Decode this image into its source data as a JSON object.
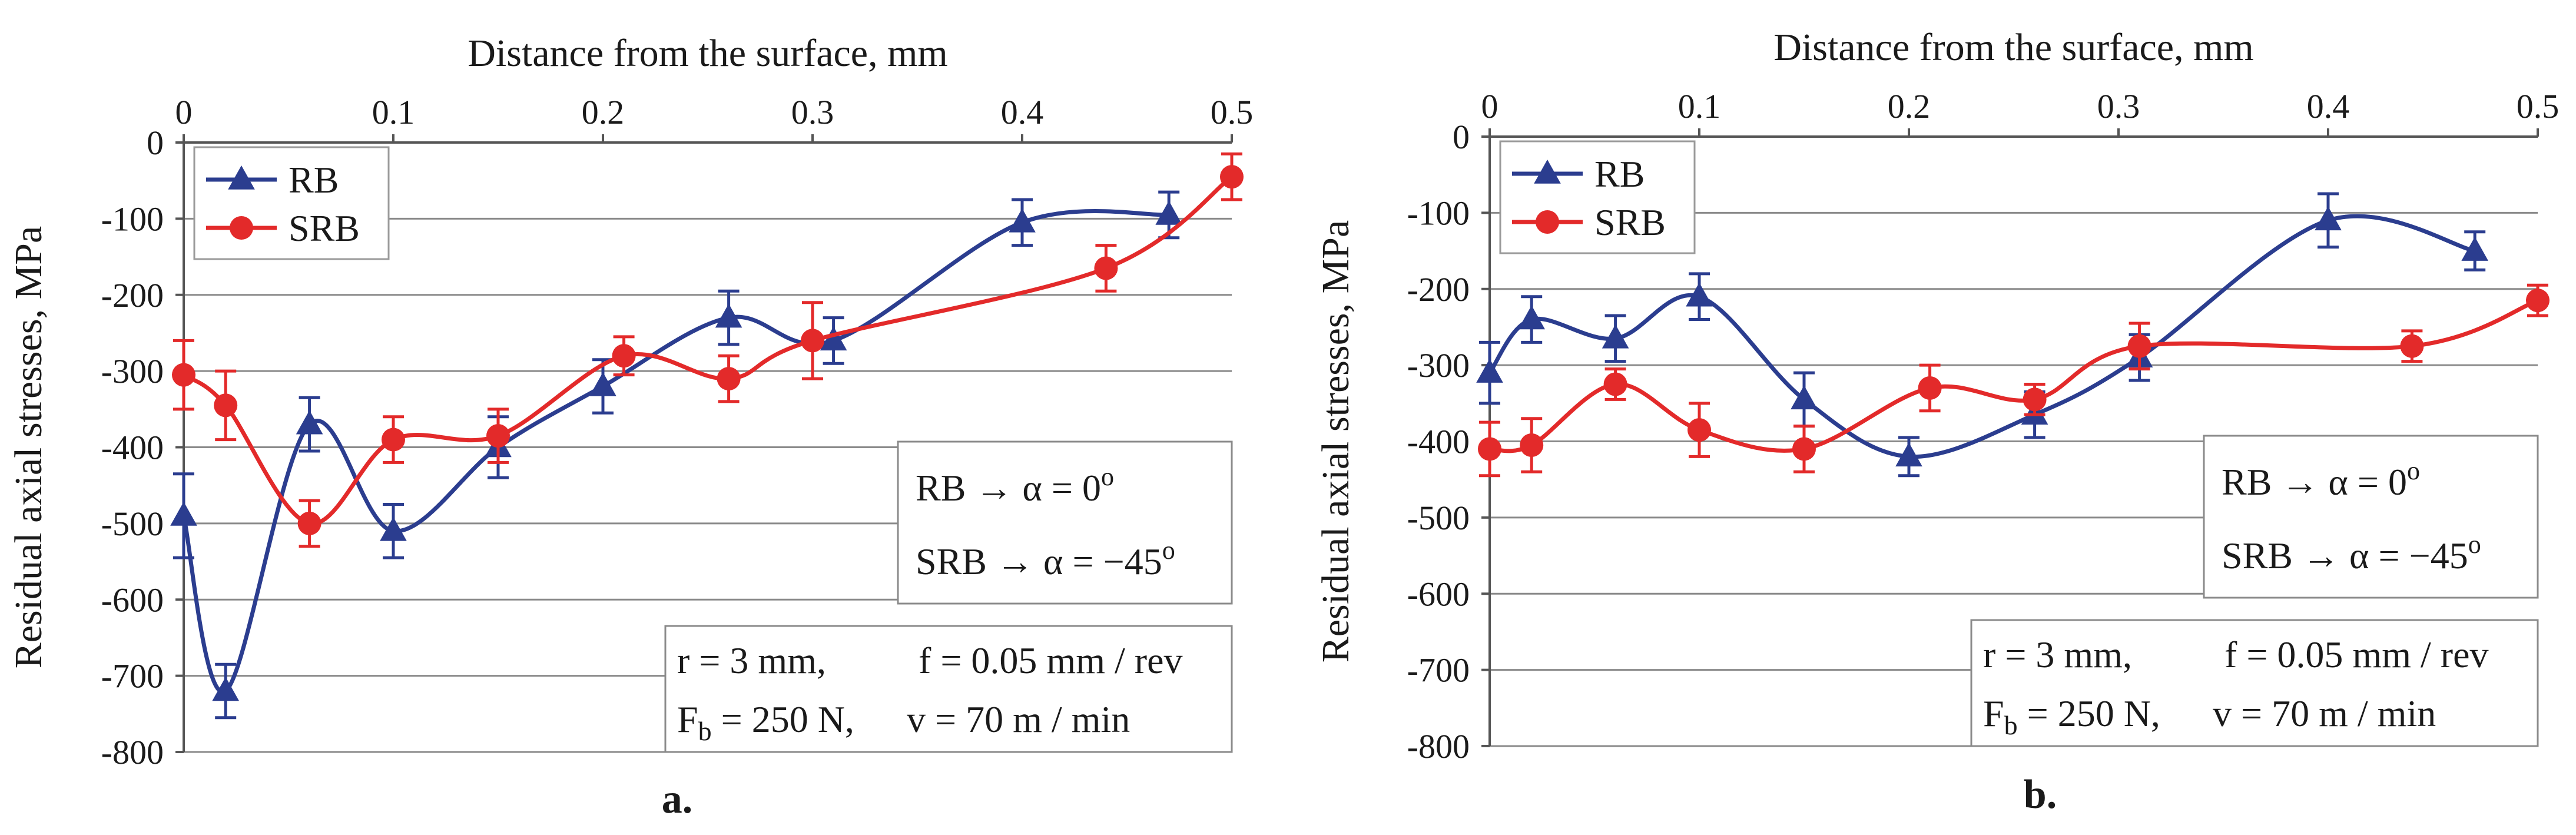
{
  "chart_data": [
    {
      "type": "line",
      "panel_label": "a.",
      "xlabel": "Distance from the surface, mm",
      "ylabel": "Residual axial stresses, MPa",
      "xlim": [
        0,
        0.5
      ],
      "ylim": [
        -800,
        0
      ],
      "x_ticks": [
        0,
        0.1,
        0.2,
        0.3,
        0.4,
        0.5
      ],
      "x_tick_labels": [
        "0",
        "0.1",
        "0.2",
        "0.3",
        "0.4",
        "0.5"
      ],
      "y_ticks": [
        0,
        -100,
        -200,
        -300,
        -400,
        -500,
        -600,
        -700,
        -800
      ],
      "y_tick_labels": [
        "0",
        "-100",
        "-200",
        "-300",
        "-400",
        "-500",
        "-600",
        "-700",
        "-800"
      ],
      "x_axis_position": "top",
      "grid": "horizontal",
      "legend_position": "top-left",
      "series": [
        {
          "name": "RB",
          "color": "#2b3d8f",
          "marker": "triangle",
          "x": [
            0,
            0.02,
            0.06,
            0.1,
            0.15,
            0.2,
            0.26,
            0.31,
            0.4,
            0.47
          ],
          "y": [
            -490,
            -720,
            -370,
            -510,
            -400,
            -320,
            -230,
            -260,
            -105,
            -95
          ],
          "error": [
            55,
            35,
            35,
            35,
            40,
            35,
            35,
            30,
            30,
            30
          ]
        },
        {
          "name": "SRB",
          "color": "#e32a2a",
          "marker": "circle",
          "x": [
            0,
            0.02,
            0.06,
            0.1,
            0.15,
            0.21,
            0.26,
            0.3,
            0.44,
            0.5
          ],
          "y": [
            -305,
            -345,
            -500,
            -390,
            -385,
            -280,
            -310,
            -260,
            -165,
            -45
          ],
          "error": [
            45,
            45,
            30,
            30,
            35,
            25,
            30,
            50,
            30,
            30
          ]
        }
      ],
      "annotation_alpha": [
        "RB → α = 0°",
        "SRB → α = −45°"
      ],
      "annotation_params": [
        "r = 3 mm,",
        "f = 0.05 mm / rev",
        "Fb = 250 N,",
        "v = 70 m / min"
      ]
    },
    {
      "type": "line",
      "panel_label": "b.",
      "xlabel": "Distance from the surface, mm",
      "ylabel": "Residual axial stresses, MPa",
      "xlim": [
        0,
        0.5
      ],
      "ylim": [
        -800,
        0
      ],
      "x_ticks": [
        0,
        0.1,
        0.2,
        0.3,
        0.4,
        0.5
      ],
      "x_tick_labels": [
        "0",
        "0.1",
        "0.2",
        "0.3",
        "0.4",
        "0.5"
      ],
      "y_ticks": [
        0,
        -100,
        -200,
        -300,
        -400,
        -500,
        -600,
        -700,
        -800
      ],
      "y_tick_labels": [
        "0",
        "-100",
        "-200",
        "-300",
        "-400",
        "-500",
        "-600",
        "-700",
        "-800"
      ],
      "x_axis_position": "top",
      "grid": "horizontal",
      "legend_position": "top-left",
      "series": [
        {
          "name": "RB",
          "color": "#2b3d8f",
          "marker": "triangle",
          "x": [
            0,
            0.02,
            0.06,
            0.1,
            0.15,
            0.2,
            0.26,
            0.31,
            0.4,
            0.47
          ],
          "y": [
            -310,
            -240,
            -265,
            -210,
            -345,
            -420,
            -365,
            -290,
            -110,
            -150
          ],
          "error": [
            40,
            30,
            30,
            30,
            35,
            25,
            30,
            30,
            35,
            25
          ]
        },
        {
          "name": "SRB",
          "color": "#e32a2a",
          "marker": "circle",
          "x": [
            0,
            0.02,
            0.06,
            0.1,
            0.15,
            0.21,
            0.26,
            0.31,
            0.44,
            0.5
          ],
          "y": [
            -410,
            -405,
            -325,
            -385,
            -410,
            -330,
            -345,
            -275,
            -275,
            -215
          ],
          "error": [
            35,
            35,
            20,
            35,
            30,
            30,
            20,
            30,
            20,
            20
          ]
        }
      ],
      "annotation_alpha": [
        "RB → α = 0°",
        "SRB → α = −45°"
      ],
      "annotation_params": [
        "r = 3 mm,",
        "f = 0.05 mm / rev",
        "Fb = 250 N,",
        "v = 70 m / min"
      ]
    }
  ]
}
